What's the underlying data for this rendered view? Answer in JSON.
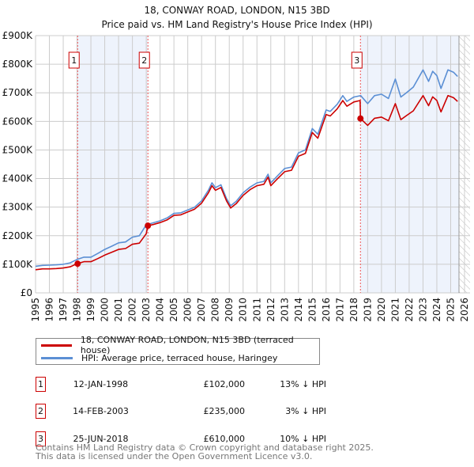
{
  "title": "18, CONWAY ROAD, LONDON, N15 3BD",
  "subtitle": "Price paid vs. HM Land Registry's House Price Index (HPI)",
  "colors": {
    "price": "#cc0000",
    "hpi": "#5b8fd4",
    "shade": "#eef3fc",
    "grid": "#cccccc"
  },
  "chart_data": {
    "type": "line",
    "title": "18, CONWAY ROAD, LONDON, N15 3BD",
    "xlim": [
      1995,
      2026
    ],
    "ylim": [
      0,
      900000
    ],
    "x_ticks": [
      "1995",
      "1996",
      "1997",
      "1998",
      "1999",
      "2000",
      "2001",
      "2002",
      "2003",
      "2004",
      "2005",
      "2006",
      "2007",
      "2008",
      "2009",
      "2010",
      "2011",
      "2012",
      "2013",
      "2014",
      "2015",
      "2016",
      "2017",
      "2018",
      "2019",
      "2020",
      "2021",
      "2022",
      "2023",
      "2024",
      "2025",
      "2026"
    ],
    "y_ticks": [
      {
        "v": 0,
        "label": "£0"
      },
      {
        "v": 100000,
        "label": "£100K"
      },
      {
        "v": 200000,
        "label": "£200K"
      },
      {
        "v": 300000,
        "label": "£300K"
      },
      {
        "v": 400000,
        "label": "£400K"
      },
      {
        "v": 500000,
        "label": "£500K"
      },
      {
        "v": 600000,
        "label": "£600K"
      },
      {
        "v": 700000,
        "label": "£700K"
      },
      {
        "v": 800000,
        "label": "£800K"
      },
      {
        "v": 900000,
        "label": "£900K"
      }
    ],
    "grid": true,
    "shaded_periods": [
      [
        1998.04,
        2003.12
      ],
      [
        2018.48,
        2025.6
      ]
    ],
    "data_end": 2025.6,
    "series": [
      {
        "name": "18, CONWAY ROAD, LONDON, N15 3BD (terraced house)",
        "color": "#cc0000",
        "x": [
          1995,
          1995.5,
          1996,
          1996.5,
          1997,
          1997.5,
          1998,
          1998.5,
          1999,
          1999.5,
          2000,
          2000.5,
          2001,
          2001.5,
          2002,
          2002.5,
          2003,
          2003.12,
          2003.5,
          2004,
          2004.5,
          2005,
          2005.5,
          2006,
          2006.5,
          2007,
          2007.5,
          2007.75,
          2008,
          2008.4,
          2008.8,
          2009.1,
          2009.5,
          2010,
          2010.5,
          2011,
          2011.5,
          2011.8,
          2012,
          2012.5,
          2013,
          2013.5,
          2014,
          2014.5,
          2015,
          2015.4,
          2016,
          2016.3,
          2016.8,
          2017.2,
          2017.5,
          2018,
          2018.45,
          2018.48,
          2019,
          2019.5,
          2020,
          2020.5,
          2021,
          2021.4,
          2021.8,
          2022.3,
          2023,
          2023.4,
          2023.7,
          2024,
          2024.3,
          2024.8,
          2025.2,
          2025.5
        ],
        "y": [
          81000,
          84000,
          84000,
          85000,
          87000,
          91000,
          102000,
          109000,
          109000,
          120000,
          132000,
          142000,
          152000,
          155000,
          170000,
          174000,
          207000,
          235000,
          239000,
          246000,
          255000,
          271000,
          273000,
          283000,
          293000,
          314000,
          351000,
          375000,
          359000,
          369000,
          322000,
          297000,
          312000,
          341000,
          361000,
          375000,
          380000,
          405000,
          375000,
          400000,
          424000,
          429000,
          478000,
          488000,
          561000,
          541000,
          624000,
          619000,
          644000,
          673000,
          653000,
          668000,
          673000,
          610000,
          586000,
          611000,
          615000,
          602000,
          662000,
          606000,
          620000,
          637000,
          690000,
          655000,
          686000,
          673000,
          633000,
          690000,
          683000,
          670000
        ]
      },
      {
        "name": "HPI: Average price, terraced house, Haringey",
        "color": "#5b8fd4",
        "x": [
          1995,
          1995.5,
          1996,
          1996.5,
          1997,
          1997.5,
          1998,
          1998.5,
          1999,
          1999.5,
          2000,
          2000.5,
          2001,
          2001.5,
          2002,
          2002.5,
          2003,
          2003.5,
          2004,
          2004.5,
          2005,
          2005.5,
          2006,
          2006.5,
          2007,
          2007.5,
          2007.75,
          2008,
          2008.4,
          2008.8,
          2009.1,
          2009.5,
          2010,
          2010.5,
          2011,
          2011.5,
          2011.8,
          2012,
          2012.5,
          2013,
          2013.5,
          2014,
          2014.5,
          2015,
          2015.4,
          2016,
          2016.3,
          2016.8,
          2017.2,
          2017.5,
          2018,
          2018.5,
          2019,
          2019.5,
          2020,
          2020.5,
          2021,
          2021.4,
          2021.8,
          2022.3,
          2023,
          2023.4,
          2023.7,
          2024,
          2024.3,
          2024.8,
          2025.2,
          2025.5
        ],
        "y": [
          93000,
          96000,
          97000,
          98000,
          100000,
          105000,
          117000,
          125000,
          125000,
          138000,
          152000,
          163000,
          175000,
          178000,
          195000,
          200000,
          238000,
          245000,
          252000,
          262000,
          278000,
          280000,
          290000,
          300000,
          322000,
          360000,
          385000,
          368000,
          378000,
          330000,
          305000,
          320000,
          350000,
          370000,
          385000,
          390000,
          415000,
          385000,
          410000,
          435000,
          440000,
          490000,
          500000,
          575000,
          555000,
          640000,
          635000,
          660000,
          690000,
          670000,
          685000,
          690000,
          662000,
          690000,
          695000,
          680000,
          748000,
          685000,
          700000,
          720000,
          780000,
          740000,
          775000,
          760000,
          715000,
          780000,
          772000,
          757000
        ]
      }
    ],
    "sales": [
      {
        "label": "1",
        "x": 1998.04,
        "y": 102000
      },
      {
        "label": "2",
        "x": 2003.12,
        "y": 235000
      },
      {
        "label": "3",
        "x": 2018.48,
        "y": 610000
      }
    ]
  },
  "legend": {
    "price_label": "18, CONWAY ROAD, LONDON, N15 3BD (terraced house)",
    "hpi_label": "HPI: Average price, terraced house, Haringey"
  },
  "transactions": [
    {
      "num": "1",
      "date": "12-JAN-1998",
      "price": "£102,000",
      "hpi": "13% ↓ HPI"
    },
    {
      "num": "2",
      "date": "14-FEB-2003",
      "price": "£235,000",
      "hpi": "3% ↓ HPI"
    },
    {
      "num": "3",
      "date": "25-JUN-2018",
      "price": "£610,000",
      "hpi": "10% ↓ HPI"
    }
  ],
  "footer": {
    "line1": "Contains HM Land Registry data © Crown copyright and database right 2025.",
    "line2": "This data is licensed under the Open Government Licence v3.0."
  }
}
